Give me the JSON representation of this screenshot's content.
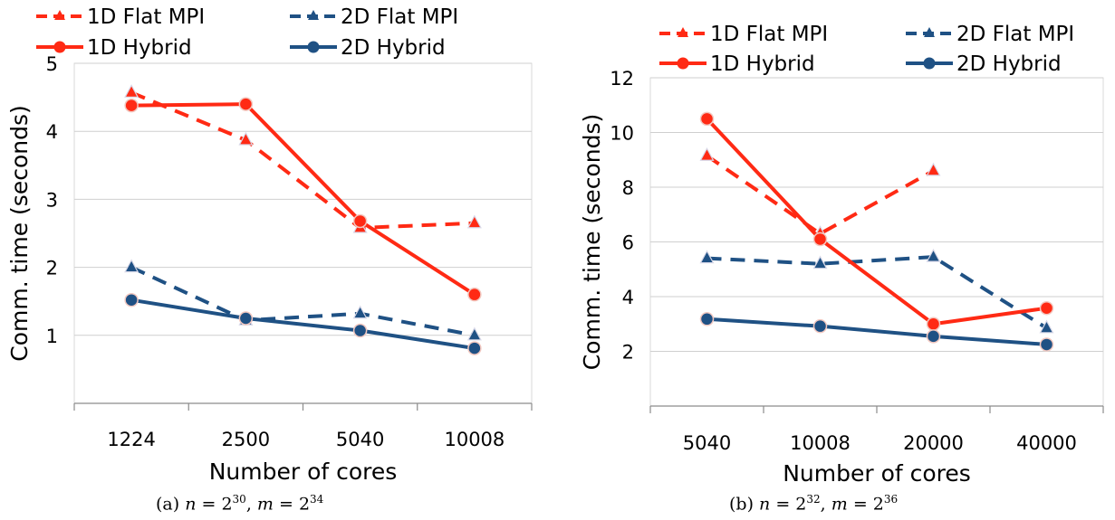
{
  "chart_data": [
    {
      "type": "line",
      "categories": [
        "1224",
        "2500",
        "5040",
        "10008"
      ],
      "xlabel": "Number of cores",
      "ylabel": "Comm. time (seconds)",
      "ylim": [
        0,
        5
      ],
      "yticks": [
        1,
        2,
        3,
        4,
        5
      ],
      "grid": true,
      "legend_position": "top",
      "caption": {
        "prefix": "(a) ",
        "n_exp": "30",
        "m_exp": "34"
      },
      "series": [
        {
          "name": "1D Flat MPI",
          "values": [
            4.57,
            3.87,
            2.58,
            2.65
          ],
          "color": "#ff2a14",
          "dash": true,
          "marker": "triangle"
        },
        {
          "name": "2D Flat MPI",
          "values": [
            2.0,
            1.22,
            1.32,
            1.0
          ],
          "color": "#1f5184",
          "dash": true,
          "marker": "triangle"
        },
        {
          "name": "1D Hybrid",
          "values": [
            4.38,
            4.4,
            2.68,
            1.6
          ],
          "color": "#ff2a14",
          "dash": false,
          "marker": "circle"
        },
        {
          "name": "2D Hybrid",
          "values": [
            1.52,
            1.25,
            1.07,
            0.81
          ],
          "color": "#1f5184",
          "dash": false,
          "marker": "circle"
        }
      ]
    },
    {
      "type": "line",
      "categories": [
        "5040",
        "10008",
        "20000",
        "40000"
      ],
      "xlabel": "Number of cores",
      "ylabel": "Comm. time (seconds)",
      "ylim": [
        0,
        12
      ],
      "yticks": [
        2,
        4,
        6,
        8,
        10,
        12
      ],
      "grid": true,
      "legend_position": "top",
      "caption": {
        "prefix": "(b) ",
        "n_exp": "32",
        "m_exp": "36"
      },
      "series": [
        {
          "name": "1D Flat MPI",
          "values": [
            9.15,
            6.3,
            8.6,
            null
          ],
          "color": "#ff2a14",
          "dash": true,
          "marker": "triangle"
        },
        {
          "name": "2D Flat MPI",
          "values": [
            5.4,
            5.2,
            5.45,
            2.85
          ],
          "color": "#1f5184",
          "dash": true,
          "marker": "triangle"
        },
        {
          "name": "1D Hybrid",
          "values": [
            10.5,
            6.1,
            3.0,
            3.58
          ],
          "color": "#ff2a14",
          "dash": false,
          "marker": "circle"
        },
        {
          "name": "2D Hybrid",
          "values": [
            3.18,
            2.92,
            2.55,
            2.25
          ],
          "color": "#1f5184",
          "dash": false,
          "marker": "circle"
        }
      ]
    }
  ]
}
